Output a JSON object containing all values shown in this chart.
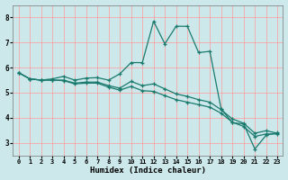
{
  "xlabel": "Humidex (Indice chaleur)",
  "bg_color": "#cce8ea",
  "grid_color": "#ff9999",
  "line_color": "#1a7a6e",
  "xlim": [
    -0.5,
    23.5
  ],
  "ylim": [
    2.5,
    8.5
  ],
  "xticks": [
    0,
    1,
    2,
    3,
    4,
    5,
    6,
    7,
    8,
    9,
    10,
    11,
    12,
    13,
    14,
    15,
    16,
    17,
    18,
    19,
    20,
    21,
    22,
    23
  ],
  "yticks": [
    3,
    4,
    5,
    6,
    7,
    8
  ],
  "line1_y": [
    5.8,
    5.55,
    5.5,
    5.55,
    5.65,
    5.5,
    5.58,
    5.6,
    5.5,
    5.75,
    6.2,
    6.2,
    7.85,
    6.95,
    7.65,
    7.65,
    6.6,
    6.65,
    4.35,
    3.8,
    3.75,
    2.75,
    3.3,
    3.4
  ],
  "line2_y": [
    5.8,
    5.55,
    5.5,
    5.5,
    5.5,
    5.38,
    5.42,
    5.42,
    5.28,
    5.18,
    5.45,
    5.28,
    5.35,
    5.15,
    4.95,
    4.85,
    4.72,
    4.62,
    4.32,
    3.95,
    3.78,
    3.38,
    3.48,
    3.38
  ],
  "line3_y": [
    5.8,
    5.55,
    5.5,
    5.5,
    5.48,
    5.35,
    5.38,
    5.38,
    5.22,
    5.1,
    5.25,
    5.08,
    5.05,
    4.88,
    4.72,
    4.62,
    4.52,
    4.42,
    4.18,
    3.82,
    3.65,
    3.25,
    3.35,
    3.35
  ]
}
